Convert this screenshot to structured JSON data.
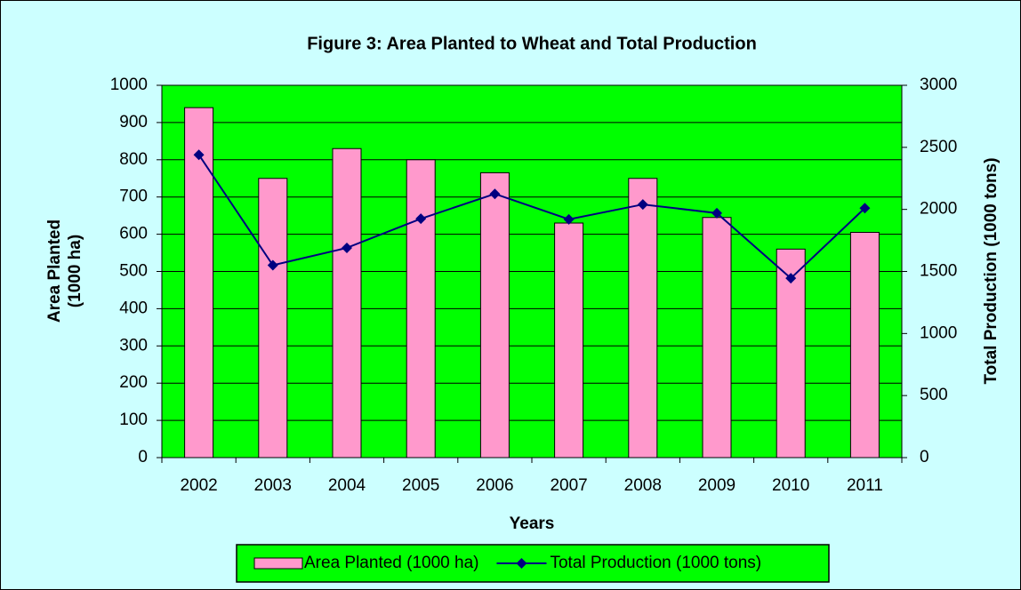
{
  "chart_data": {
    "type": "bar",
    "title": "Figure 3: Area Planted to Wheat and Total Production",
    "x_label": "Years",
    "y_label": [
      "Area Planted",
      "(1000 ha)"
    ],
    "y2_label": "Total Production (1000 tons)",
    "categories": [
      "2002",
      "2003",
      "2004",
      "2005",
      "2006",
      "2007",
      "2008",
      "2009",
      "2010",
      "2011"
    ],
    "series": [
      {
        "name": "Area Planted (1000 ha)",
        "type": "bar",
        "axis": "y",
        "color": "#ff99cc",
        "values": [
          940,
          750,
          830,
          800,
          765,
          630,
          750,
          645,
          560,
          605
        ]
      },
      {
        "name": "Total Production (1000 tons)",
        "type": "line",
        "axis": "y2",
        "color": "#000080",
        "values": [
          2440,
          1550,
          1690,
          1925,
          2125,
          1920,
          2040,
          1970,
          1445,
          2010
        ]
      }
    ],
    "ylim": [
      0,
      1000
    ],
    "yticks": [
      0,
      100,
      200,
      300,
      400,
      500,
      600,
      700,
      800,
      900,
      1000
    ],
    "y2lim": [
      0,
      3000
    ],
    "y2ticks": [
      0,
      500,
      1000,
      1500,
      2000,
      2500,
      3000
    ],
    "grid": true,
    "plot_color": "#00ff00",
    "background_color": "#ccffff",
    "legend": "bottom"
  }
}
